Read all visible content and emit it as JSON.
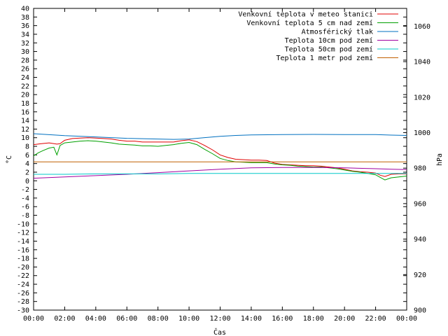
{
  "chart_data": {
    "type": "line",
    "xlabel": "Čas",
    "ylabel_left": "°C",
    "ylabel_right": "hPa",
    "x_ticks": [
      "00:00",
      "02:00",
      "04:00",
      "06:00",
      "08:00",
      "10:00",
      "12:00",
      "14:00",
      "16:00",
      "18:00",
      "20:00",
      "22:00",
      "00:00"
    ],
    "ylim_left": [
      -30,
      40
    ],
    "ylim_right": [
      900,
      1070
    ],
    "y_ticks_left": [
      40,
      38,
      36,
      34,
      32,
      30,
      28,
      26,
      24,
      22,
      20,
      18,
      16,
      14,
      12,
      10,
      8,
      6,
      4,
      2,
      0,
      -2,
      -4,
      -6,
      -8,
      -10,
      -12,
      -14,
      -16,
      -18,
      -20,
      -22,
      -24,
      -26,
      -28,
      -30
    ],
    "y_ticks_right": [
      1060,
      1040,
      1020,
      1000,
      980,
      960,
      940,
      920,
      900
    ],
    "grid": false,
    "legend_position": "top-right",
    "series": [
      {
        "name": "Venkovní teplota v meteo stanici",
        "color": "#e00000",
        "axis": "left",
        "x": [
          0,
          0.5,
          1,
          1.5,
          1.7,
          2,
          2.5,
          3,
          3.5,
          4,
          4.5,
          5,
          5.5,
          6,
          6.5,
          7,
          7.5,
          8,
          8.5,
          9,
          9.5,
          10,
          10.5,
          11,
          11.5,
          12,
          12.5,
          13,
          13.5,
          14,
          14.5,
          15,
          15.5,
          16,
          16.5,
          17,
          17.5,
          18,
          18.5,
          19,
          19.5,
          20,
          20.5,
          21,
          21.5,
          22,
          22.3,
          22.6,
          23,
          23.5,
          24
        ],
        "y": [
          8.4,
          8.6,
          8.8,
          8.5,
          8.6,
          9.4,
          9.8,
          9.9,
          10.0,
          9.9,
          9.8,
          9.7,
          9.4,
          9.2,
          9.2,
          9.0,
          9.0,
          9.0,
          9.0,
          9.0,
          9.3,
          9.5,
          9.1,
          8.2,
          7.2,
          6.0,
          5.4,
          5.0,
          4.9,
          4.8,
          4.8,
          4.7,
          4.1,
          3.8,
          3.7,
          3.6,
          3.5,
          3.5,
          3.4,
          3.2,
          3.0,
          2.7,
          2.3,
          2.1,
          2.0,
          1.8,
          1.3,
          1.0,
          1.5,
          1.6,
          1.6
        ]
      },
      {
        "name": "Venkovní teplota 5 cm nad zemí",
        "color": "#00a000",
        "axis": "left",
        "x": [
          0,
          0.3,
          0.6,
          1,
          1.3,
          1.5,
          1.7,
          2,
          2.5,
          3,
          3.5,
          4,
          4.5,
          5,
          5.5,
          6,
          6.5,
          7,
          7.5,
          8,
          8.5,
          9,
          9.5,
          10,
          10.5,
          11,
          11.5,
          12,
          12.5,
          13,
          13.5,
          14,
          14.5,
          15,
          15.5,
          16,
          16.5,
          17,
          17.5,
          18,
          18.5,
          19,
          19.5,
          20,
          20.5,
          21,
          21.5,
          22,
          22.3,
          22.6,
          23,
          23.5,
          24
        ],
        "y": [
          5.8,
          6.5,
          7.0,
          7.6,
          7.8,
          6.0,
          8.2,
          8.8,
          9.0,
          9.2,
          9.3,
          9.2,
          9.0,
          8.8,
          8.5,
          8.4,
          8.3,
          8.1,
          8.1,
          8.0,
          8.2,
          8.4,
          8.7,
          8.9,
          8.4,
          7.3,
          6.3,
          5.2,
          4.7,
          4.4,
          4.3,
          4.2,
          4.2,
          4.2,
          3.9,
          3.7,
          3.6,
          3.4,
          3.3,
          3.2,
          3.2,
          3.0,
          2.8,
          2.5,
          2.2,
          2.0,
          1.7,
          1.4,
          0.8,
          0.2,
          0.7,
          0.9,
          1.1
        ]
      },
      {
        "name": "Atmosférický tlak",
        "color": "#0070c0",
        "axis": "right",
        "x": [
          0,
          2,
          4,
          6,
          8,
          9,
          10,
          11,
          12,
          13,
          14,
          16,
          18,
          20,
          22,
          23,
          24
        ],
        "y": [
          999.4,
          998.3,
          997.6,
          996.8,
          996.4,
          996.2,
          996.4,
          997.2,
          997.9,
          998.4,
          998.7,
          998.9,
          999.0,
          998.9,
          998.9,
          998.6,
          998.4
        ]
      },
      {
        "name": "Teplota 10cm pod zemí",
        "color": "#a000a0",
        "axis": "left",
        "x": [
          0,
          2,
          4,
          6,
          8,
          10,
          12,
          14,
          16,
          18,
          20,
          22,
          23,
          24
        ],
        "y": [
          0.6,
          0.9,
          1.2,
          1.5,
          1.9,
          2.3,
          2.7,
          3.0,
          3.1,
          3.1,
          3.0,
          2.8,
          2.7,
          2.6
        ]
      },
      {
        "name": "Teplota 50cm pod zemí",
        "color": "#00c8c8",
        "axis": "left",
        "x": [
          0,
          2,
          4,
          6,
          8,
          10,
          12,
          14,
          16,
          18,
          20,
          22,
          24
        ],
        "y": [
          1.5,
          1.5,
          1.6,
          1.6,
          1.6,
          1.7,
          1.7,
          1.7,
          1.7,
          1.7,
          1.7,
          1.7,
          1.7
        ]
      },
      {
        "name": "Teplota 1 metr pod zemí",
        "color": "#c06000",
        "axis": "left",
        "x": [
          0,
          24
        ],
        "y": [
          4.4,
          4.4
        ]
      }
    ]
  }
}
